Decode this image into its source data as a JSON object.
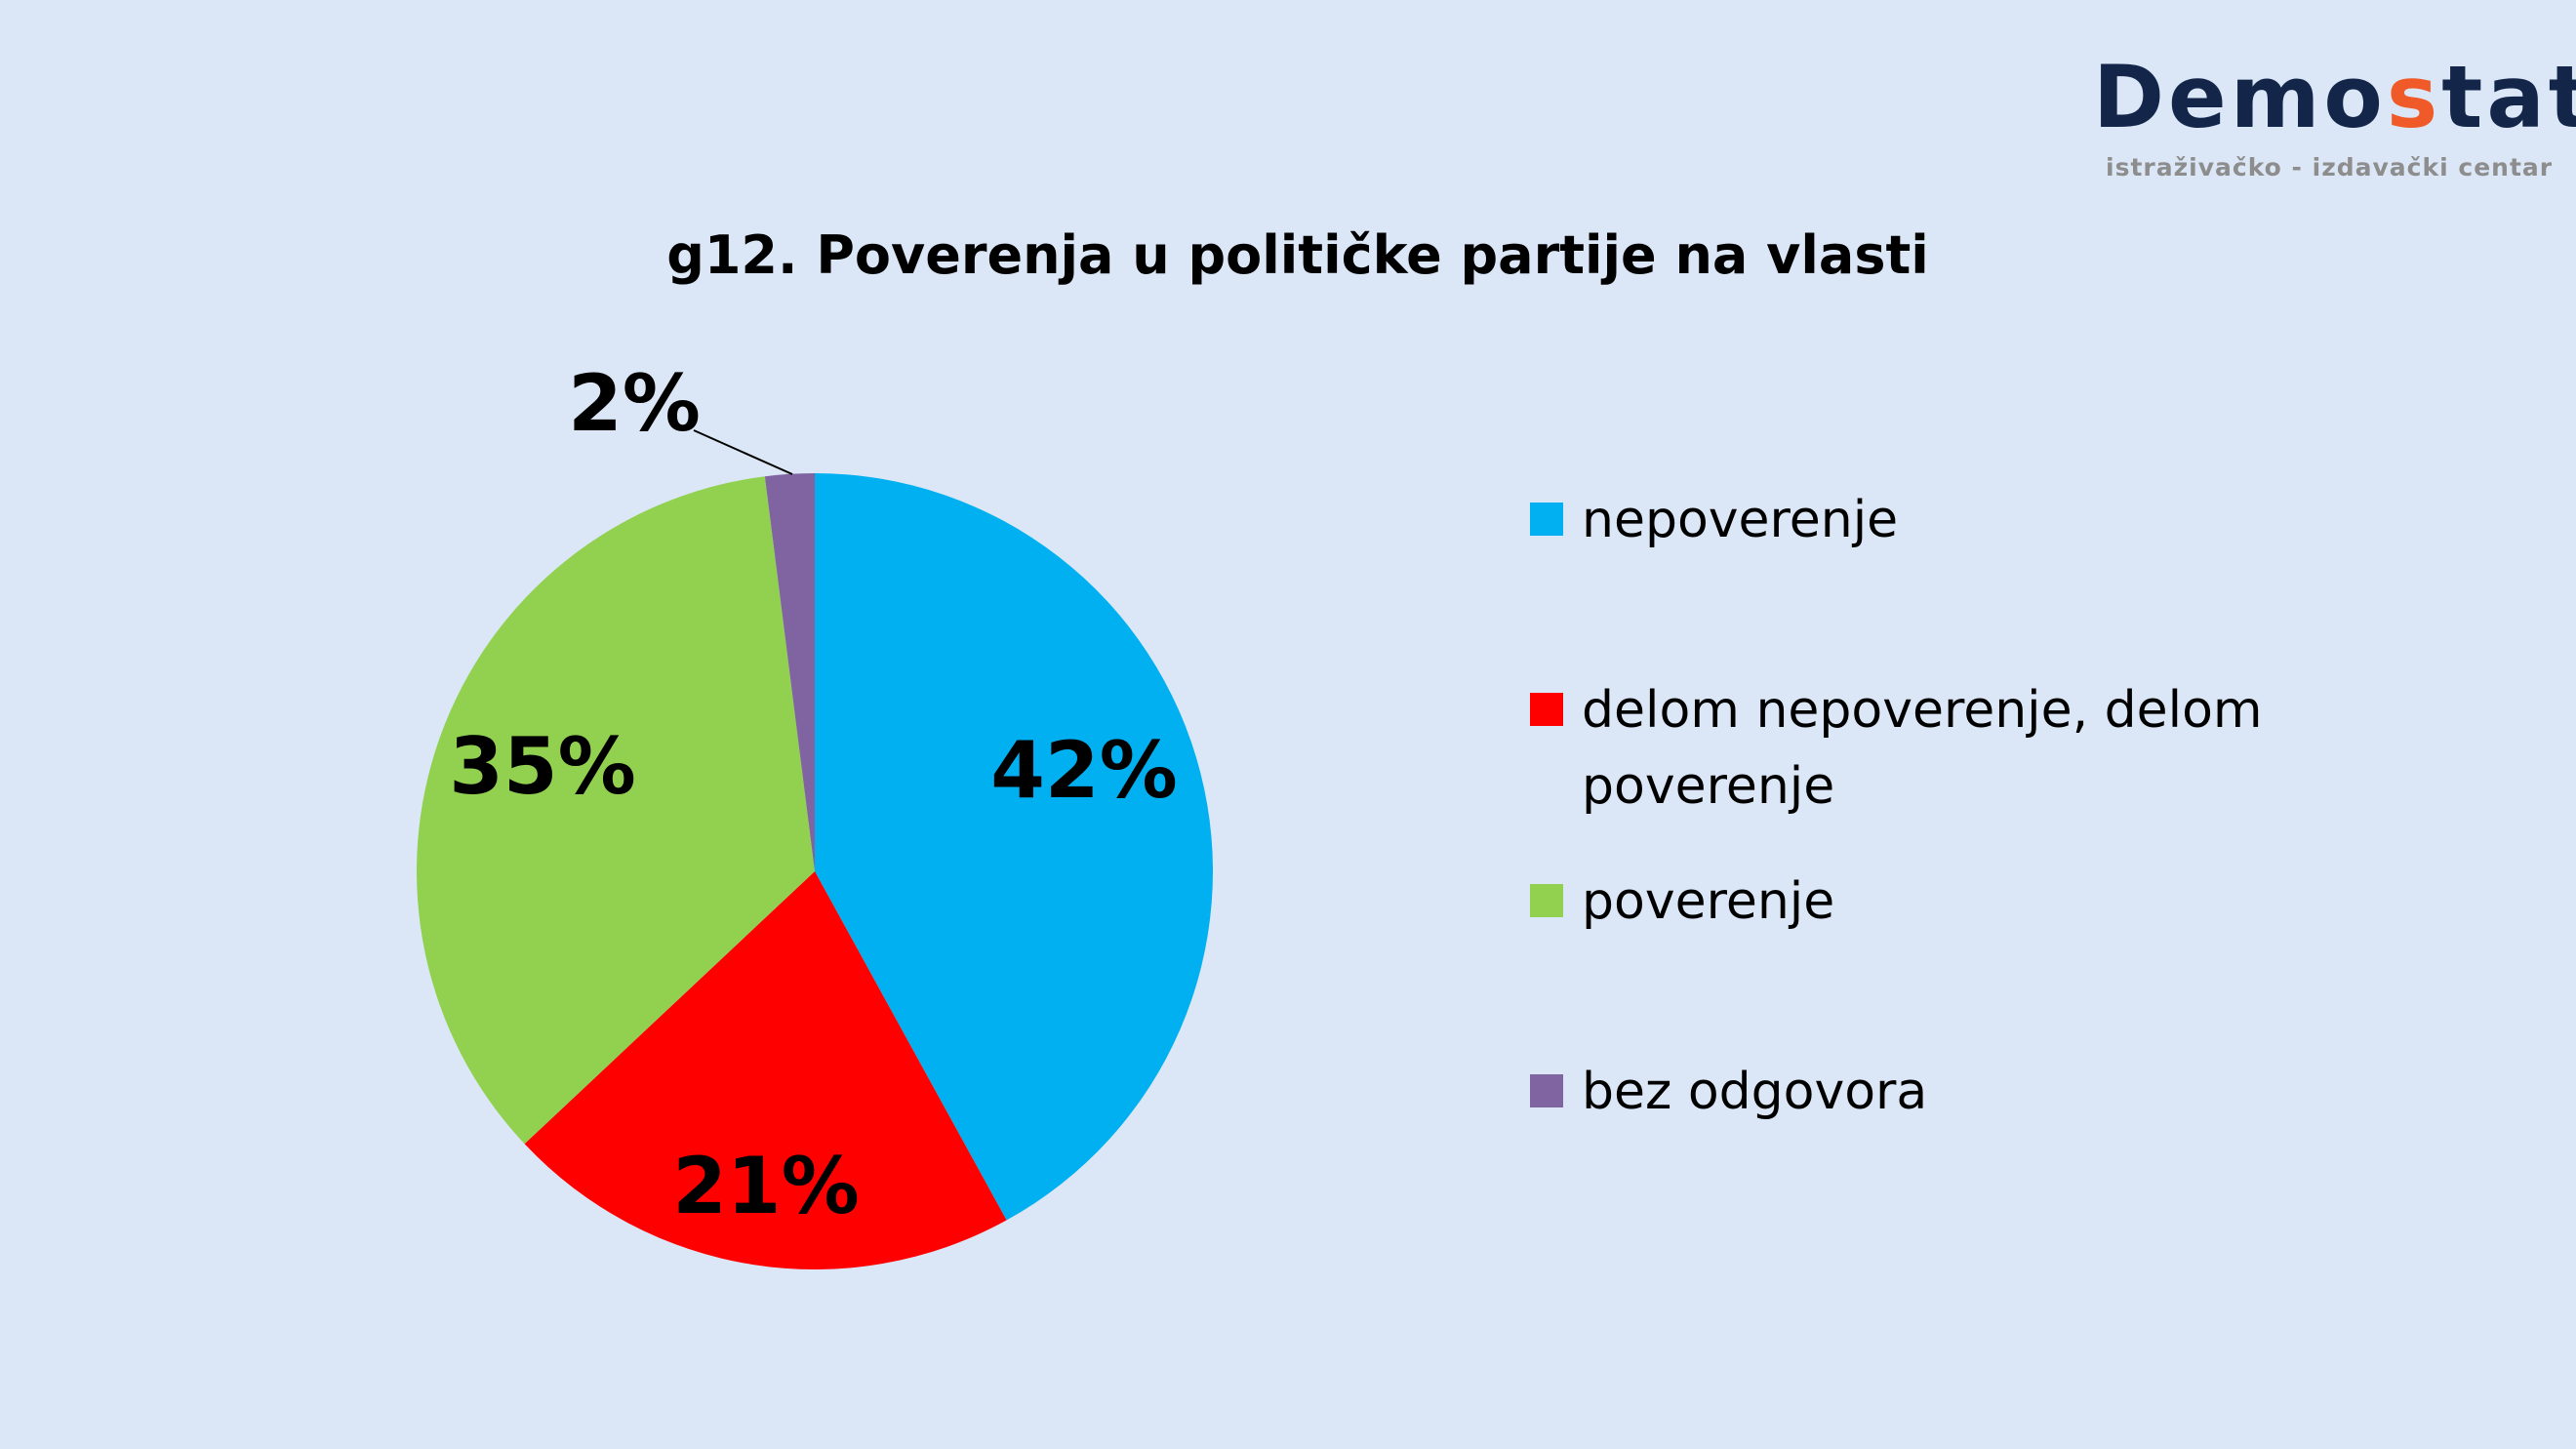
{
  "logo": {
    "name_part1": "Demo",
    "name_accent": "s",
    "name_part2": "tat",
    "subtitle": "istraživačko - izdavački  centar",
    "accent_color": "#f05a28",
    "color": "#13264a"
  },
  "chart_data": {
    "type": "pie",
    "title": "g12. Poverenja u političke partije na vlasti",
    "categories": [
      "nepoverenje",
      "delom nepoverenje, delom poverenje",
      "poverenje",
      "bez odgovora"
    ],
    "legend_lines": [
      [
        "nepoverenje"
      ],
      [
        "delom nepoverenje, delom",
        "poverenje"
      ],
      [
        "poverenje"
      ],
      [
        "bez odgovora"
      ]
    ],
    "values": [
      42,
      21,
      35,
      2
    ],
    "labels": [
      "42%",
      "21%",
      "35%",
      "2%"
    ],
    "colors": [
      "#00b0f0",
      "#ff0000",
      "#92d050",
      "#8064a2"
    ],
    "legend_position": "right"
  }
}
